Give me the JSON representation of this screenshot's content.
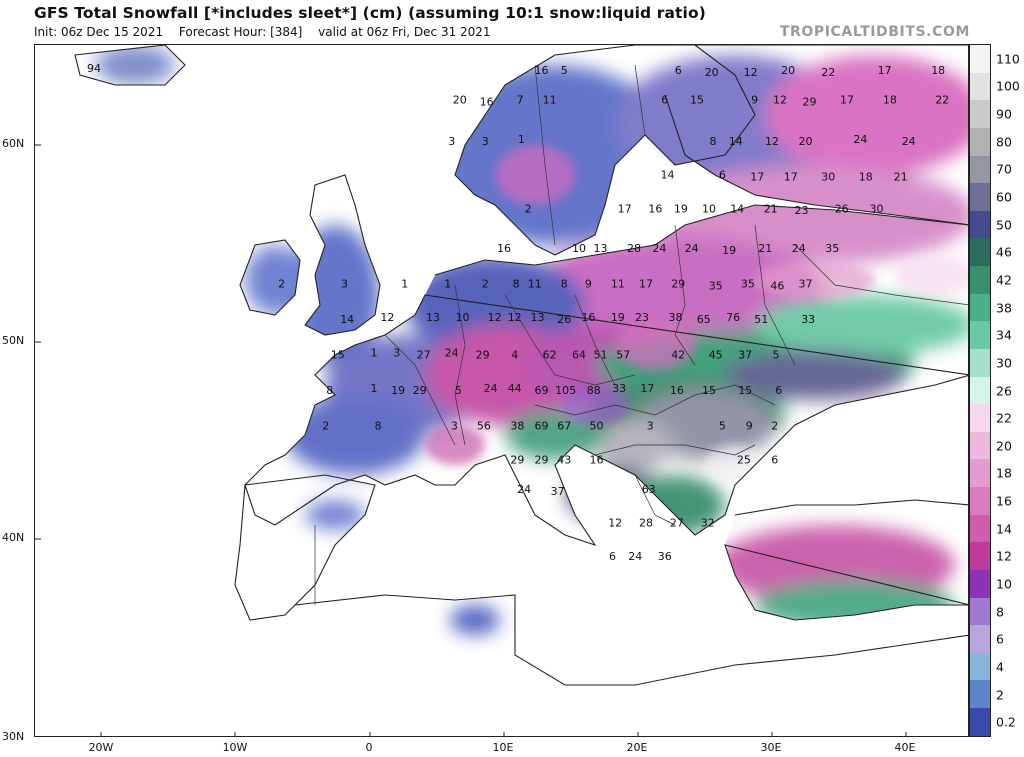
{
  "header": {
    "title": "GFS Total Snowfall [*includes sleet*] (cm) (assuming 10:1 snow:liquid ratio)",
    "init": "Init: 06z Dec 15 2021",
    "forecast_hour": "Forecast Hour: [384]",
    "valid": "valid at 06z Fri, Dec 31 2021",
    "brand": "TROPICALTIDBITS.COM"
  },
  "axes": {
    "lat_labels": [
      "60N",
      "50N",
      "40N",
      "30N"
    ],
    "lon_labels": [
      "20W",
      "10W",
      "0",
      "10E",
      "20E",
      "30E",
      "40E"
    ]
  },
  "colorbar": {
    "labels": [
      "110",
      "100",
      "90",
      "80",
      "70",
      "60",
      "50",
      "46",
      "42",
      "38",
      "34",
      "30",
      "26",
      "22",
      "20",
      "18",
      "16",
      "14",
      "12",
      "10",
      "8",
      "6",
      "4",
      "2",
      "0.2"
    ],
    "colors": [
      "#f4f4f4",
      "#e2e2e2",
      "#cacaca",
      "#b1b1b1",
      "#9596a4",
      "#6e6f96",
      "#464a8e",
      "#2c6c5c",
      "#38906f",
      "#4ab087",
      "#6ac9a4",
      "#a4e0cb",
      "#d8f3ea",
      "#f6d8ec",
      "#ecb8dc",
      "#e39ccd",
      "#d97cbd",
      "#cf5cac",
      "#bf3c9c",
      "#8e32b8",
      "#a07ad0",
      "#b6a6dc",
      "#88b4dc",
      "#5c86c6",
      "#3a4aa8"
    ]
  },
  "snow_values": [
    {
      "v": "94",
      "lat": 63.9,
      "lon": -20.6
    },
    {
      "v": "16",
      "lat": 63.8,
      "lon": 12.8
    },
    {
      "v": "5",
      "lat": 63.8,
      "lon": 14.5
    },
    {
      "v": "6",
      "lat": 63.8,
      "lon": 23.0
    },
    {
      "v": "20",
      "lat": 63.7,
      "lon": 25.5
    },
    {
      "v": "12",
      "lat": 63.7,
      "lon": 28.4
    },
    {
      "v": "20",
      "lat": 63.8,
      "lon": 31.2
    },
    {
      "v": "22",
      "lat": 63.7,
      "lon": 34.2
    },
    {
      "v": "17",
      "lat": 63.8,
      "lon": 38.4
    },
    {
      "v": "18",
      "lat": 63.8,
      "lon": 42.4
    },
    {
      "v": "20",
      "lat": 62.3,
      "lon": 6.7
    },
    {
      "v": "16",
      "lat": 62.2,
      "lon": 8.7
    },
    {
      "v": "7",
      "lat": 62.3,
      "lon": 11.2
    },
    {
      "v": "11",
      "lat": 62.3,
      "lon": 13.4
    },
    {
      "v": "6",
      "lat": 62.3,
      "lon": 22.0
    },
    {
      "v": "15",
      "lat": 62.3,
      "lon": 24.4
    },
    {
      "v": "9",
      "lat": 62.3,
      "lon": 28.7
    },
    {
      "v": "12",
      "lat": 62.3,
      "lon": 30.6
    },
    {
      "v": "29",
      "lat": 62.2,
      "lon": 32.8
    },
    {
      "v": "17",
      "lat": 62.3,
      "lon": 35.6
    },
    {
      "v": "18",
      "lat": 62.3,
      "lon": 38.8
    },
    {
      "v": "22",
      "lat": 62.3,
      "lon": 42.7
    },
    {
      "v": "3",
      "lat": 60.2,
      "lon": 6.1
    },
    {
      "v": "3",
      "lat": 60.2,
      "lon": 8.6
    },
    {
      "v": "1",
      "lat": 60.3,
      "lon": 11.3
    },
    {
      "v": "8",
      "lat": 60.2,
      "lon": 25.6
    },
    {
      "v": "14",
      "lat": 60.2,
      "lon": 27.3
    },
    {
      "v": "12",
      "lat": 60.2,
      "lon": 30.0
    },
    {
      "v": "20",
      "lat": 60.2,
      "lon": 32.5
    },
    {
      "v": "24",
      "lat": 60.3,
      "lon": 36.6
    },
    {
      "v": "24",
      "lat": 60.2,
      "lon": 40.2
    },
    {
      "v": "14",
      "lat": 58.5,
      "lon": 22.2
    },
    {
      "v": "6",
      "lat": 58.5,
      "lon": 26.3
    },
    {
      "v": "17",
      "lat": 58.4,
      "lon": 28.9
    },
    {
      "v": "17",
      "lat": 58.4,
      "lon": 31.4
    },
    {
      "v": "30",
      "lat": 58.4,
      "lon": 34.2
    },
    {
      "v": "18",
      "lat": 58.4,
      "lon": 37.0
    },
    {
      "v": "21",
      "lat": 58.4,
      "lon": 39.6
    },
    {
      "v": "2",
      "lat": 56.8,
      "lon": 11.8
    },
    {
      "v": "17",
      "lat": 56.8,
      "lon": 19.0
    },
    {
      "v": "16",
      "lat": 56.8,
      "lon": 21.3
    },
    {
      "v": "19",
      "lat": 56.8,
      "lon": 23.2
    },
    {
      "v": "10",
      "lat": 56.8,
      "lon": 25.3
    },
    {
      "v": "14",
      "lat": 56.8,
      "lon": 27.4
    },
    {
      "v": "21",
      "lat": 56.8,
      "lon": 29.9
    },
    {
      "v": "23",
      "lat": 56.7,
      "lon": 32.2
    },
    {
      "v": "26",
      "lat": 56.8,
      "lon": 35.2
    },
    {
      "v": "30",
      "lat": 56.8,
      "lon": 37.8
    },
    {
      "v": "16",
      "lat": 54.8,
      "lon": 10.0
    },
    {
      "v": "10",
      "lat": 54.8,
      "lon": 15.6
    },
    {
      "v": "13",
      "lat": 54.8,
      "lon": 17.2
    },
    {
      "v": "28",
      "lat": 54.8,
      "lon": 19.7
    },
    {
      "v": "24",
      "lat": 54.8,
      "lon": 21.6
    },
    {
      "v": "24",
      "lat": 54.8,
      "lon": 24.0
    },
    {
      "v": "19",
      "lat": 54.7,
      "lon": 26.8
    },
    {
      "v": "21",
      "lat": 54.8,
      "lon": 29.5
    },
    {
      "v": "24",
      "lat": 54.8,
      "lon": 32.0
    },
    {
      "v": "35",
      "lat": 54.8,
      "lon": 34.5
    },
    {
      "v": "2",
      "lat": 53.0,
      "lon": -6.6
    },
    {
      "v": "3",
      "lat": 53.0,
      "lon": -1.9
    },
    {
      "v": "1",
      "lat": 53.0,
      "lon": 2.6
    },
    {
      "v": "1",
      "lat": 53.0,
      "lon": 5.8
    },
    {
      "v": "2",
      "lat": 53.0,
      "lon": 8.6
    },
    {
      "v": "8",
      "lat": 53.0,
      "lon": 10.9
    },
    {
      "v": "11",
      "lat": 53.0,
      "lon": 12.3
    },
    {
      "v": "8",
      "lat": 53.0,
      "lon": 14.5
    },
    {
      "v": "9",
      "lat": 53.0,
      "lon": 16.3
    },
    {
      "v": "11",
      "lat": 53.0,
      "lon": 18.5
    },
    {
      "v": "17",
      "lat": 53.0,
      "lon": 20.6
    },
    {
      "v": "29",
      "lat": 53.0,
      "lon": 23.0
    },
    {
      "v": "35",
      "lat": 52.9,
      "lon": 25.8
    },
    {
      "v": "35",
      "lat": 53.0,
      "lon": 28.2
    },
    {
      "v": "46",
      "lat": 52.9,
      "lon": 30.4
    },
    {
      "v": "37",
      "lat": 53.0,
      "lon": 32.5
    },
    {
      "v": "14",
      "lat": 51.2,
      "lon": -1.7
    },
    {
      "v": "12",
      "lat": 51.3,
      "lon": 1.3
    },
    {
      "v": "13",
      "lat": 51.3,
      "lon": 4.7
    },
    {
      "v": "10",
      "lat": 51.3,
      "lon": 6.9
    },
    {
      "v": "12",
      "lat": 51.3,
      "lon": 9.3
    },
    {
      "v": "12",
      "lat": 51.3,
      "lon": 10.8
    },
    {
      "v": "13",
      "lat": 51.3,
      "lon": 12.5
    },
    {
      "v": "26",
      "lat": 51.2,
      "lon": 14.5
    },
    {
      "v": "16",
      "lat": 51.3,
      "lon": 16.3
    },
    {
      "v": "19",
      "lat": 51.3,
      "lon": 18.5
    },
    {
      "v": "23",
      "lat": 51.3,
      "lon": 20.3
    },
    {
      "v": "38",
      "lat": 51.3,
      "lon": 22.8
    },
    {
      "v": "65",
      "lat": 51.2,
      "lon": 24.9
    },
    {
      "v": "76",
      "lat": 51.3,
      "lon": 27.1
    },
    {
      "v": "51",
      "lat": 51.2,
      "lon": 29.2
    },
    {
      "v": "33",
      "lat": 51.2,
      "lon": 32.7
    },
    {
      "v": "15",
      "lat": 49.4,
      "lon": -2.4
    },
    {
      "v": "1",
      "lat": 49.5,
      "lon": 0.3
    },
    {
      "v": "3",
      "lat": 49.5,
      "lon": 2.0
    },
    {
      "v": "27",
      "lat": 49.4,
      "lon": 4.0
    },
    {
      "v": "24",
      "lat": 49.5,
      "lon": 6.1
    },
    {
      "v": "29",
      "lat": 49.4,
      "lon": 8.4
    },
    {
      "v": "4",
      "lat": 49.4,
      "lon": 10.8
    },
    {
      "v": "62",
      "lat": 49.4,
      "lon": 13.4
    },
    {
      "v": "64",
      "lat": 49.4,
      "lon": 15.6
    },
    {
      "v": "51",
      "lat": 49.4,
      "lon": 17.2
    },
    {
      "v": "57",
      "lat": 49.4,
      "lon": 18.9
    },
    {
      "v": "42",
      "lat": 49.4,
      "lon": 23.0
    },
    {
      "v": "45",
      "lat": 49.4,
      "lon": 25.8
    },
    {
      "v": "37",
      "lat": 49.4,
      "lon": 28.0
    },
    {
      "v": "5",
      "lat": 49.4,
      "lon": 30.3
    },
    {
      "v": "8",
      "lat": 47.6,
      "lon": -3.0
    },
    {
      "v": "1",
      "lat": 47.7,
      "lon": 0.3
    },
    {
      "v": "19",
      "lat": 47.6,
      "lon": 2.1
    },
    {
      "v": "29",
      "lat": 47.6,
      "lon": 3.7
    },
    {
      "v": "5",
      "lat": 47.6,
      "lon": 6.6
    },
    {
      "v": "24",
      "lat": 47.7,
      "lon": 9.0
    },
    {
      "v": "44",
      "lat": 47.7,
      "lon": 10.8
    },
    {
      "v": "69",
      "lat": 47.6,
      "lon": 12.8
    },
    {
      "v": "105",
      "lat": 47.6,
      "lon": 14.6
    },
    {
      "v": "88",
      "lat": 47.6,
      "lon": 16.7
    },
    {
      "v": "33",
      "lat": 47.7,
      "lon": 18.6
    },
    {
      "v": "17",
      "lat": 47.7,
      "lon": 20.7
    },
    {
      "v": "16",
      "lat": 47.6,
      "lon": 22.9
    },
    {
      "v": "15",
      "lat": 47.6,
      "lon": 25.3
    },
    {
      "v": "15",
      "lat": 47.6,
      "lon": 28.0
    },
    {
      "v": "6",
      "lat": 47.6,
      "lon": 30.5
    },
    {
      "v": "2",
      "lat": 45.8,
      "lon": -3.3
    },
    {
      "v": "8",
      "lat": 45.8,
      "lon": 0.6
    },
    {
      "v": "3",
      "lat": 45.8,
      "lon": 6.3
    },
    {
      "v": "56",
      "lat": 45.8,
      "lon": 8.5
    },
    {
      "v": "38",
      "lat": 45.8,
      "lon": 11.0
    },
    {
      "v": "69",
      "lat": 45.8,
      "lon": 12.8
    },
    {
      "v": "67",
      "lat": 45.8,
      "lon": 14.5
    },
    {
      "v": "50",
      "lat": 45.8,
      "lon": 16.9
    },
    {
      "v": "3",
      "lat": 45.8,
      "lon": 20.9
    },
    {
      "v": "5",
      "lat": 45.8,
      "lon": 26.3
    },
    {
      "v": "9",
      "lat": 45.8,
      "lon": 28.3
    },
    {
      "v": "2",
      "lat": 45.8,
      "lon": 30.2
    },
    {
      "v": "29",
      "lat": 44.1,
      "lon": 11.0
    },
    {
      "v": "29",
      "lat": 44.1,
      "lon": 12.8
    },
    {
      "v": "43",
      "lat": 44.1,
      "lon": 14.5
    },
    {
      "v": "16",
      "lat": 44.1,
      "lon": 16.9
    },
    {
      "v": "25",
      "lat": 44.1,
      "lon": 27.9
    },
    {
      "v": "6",
      "lat": 44.1,
      "lon": 30.2
    },
    {
      "v": "24",
      "lat": 42.6,
      "lon": 11.5
    },
    {
      "v": "37",
      "lat": 42.5,
      "lon": 14.0
    },
    {
      "v": "63",
      "lat": 42.6,
      "lon": 20.8
    },
    {
      "v": "12",
      "lat": 40.9,
      "lon": 18.3
    },
    {
      "v": "28",
      "lat": 40.9,
      "lon": 20.6
    },
    {
      "v": "27",
      "lat": 40.9,
      "lon": 22.9
    },
    {
      "v": "32",
      "lat": 40.9,
      "lon": 25.2
    },
    {
      "v": "6",
      "lat": 39.2,
      "lon": 18.1
    },
    {
      "v": "24",
      "lat": 39.2,
      "lon": 19.8
    },
    {
      "v": "36",
      "lat": 39.2,
      "lon": 22.0
    }
  ]
}
